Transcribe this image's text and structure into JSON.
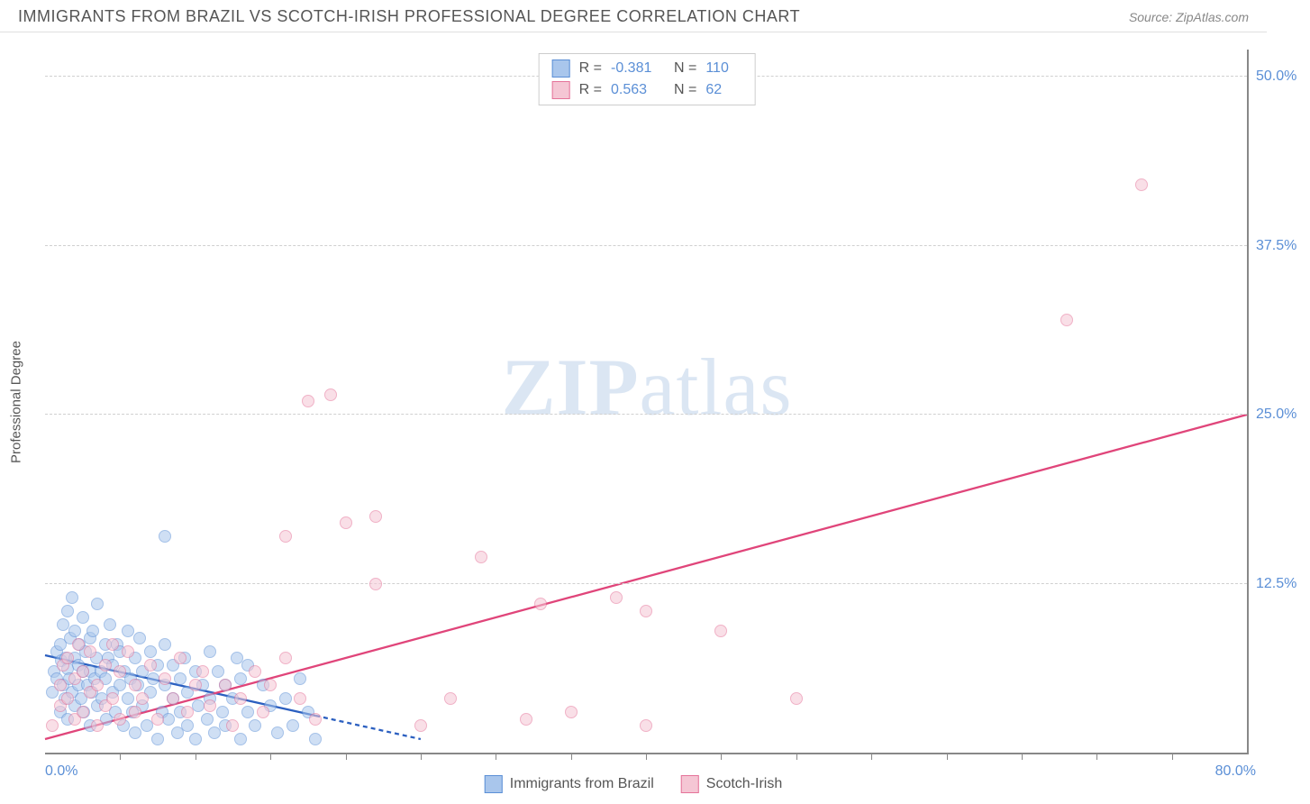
{
  "header": {
    "title": "IMMIGRANTS FROM BRAZIL VS SCOTCH-IRISH PROFESSIONAL DEGREE CORRELATION CHART",
    "source": "Source: ZipAtlas.com"
  },
  "watermark": {
    "zip": "ZIP",
    "atlas": "atlas"
  },
  "chart": {
    "type": "scatter",
    "y_axis_title": "Professional Degree",
    "xlim": [
      0,
      80
    ],
    "ylim": [
      0,
      52
    ],
    "x_origin_label": "0.0%",
    "x_max_label": "80.0%",
    "y_ticks": [
      {
        "v": 12.5,
        "label": "12.5%"
      },
      {
        "v": 25.0,
        "label": "25.0%"
      },
      {
        "v": 37.5,
        "label": "37.5%"
      },
      {
        "v": 50.0,
        "label": "50.0%"
      }
    ],
    "x_tick_positions": [
      5,
      10,
      15,
      20,
      25,
      30,
      35,
      40,
      45,
      50,
      55,
      60,
      65,
      70,
      75
    ],
    "grid_color": "#d0d0d0",
    "axis_color": "#888888",
    "background_color": "#ffffff",
    "label_color": "#5b8fd6",
    "point_radius": 7,
    "point_opacity": 0.55,
    "series": [
      {
        "name": "Immigrants from Brazil",
        "color_fill": "#a9c6ec",
        "color_stroke": "#5b8fd6",
        "r_label": "R =",
        "r_value": "-0.381",
        "n_label": "N =",
        "n_value": "110",
        "trend": {
          "x1": 0,
          "y1": 7.2,
          "x2": 25,
          "y2": 1.0,
          "dash_from_x": 18,
          "color": "#2b5fc0",
          "width": 2.3
        },
        "points": [
          [
            0.5,
            4.5
          ],
          [
            0.6,
            6.0
          ],
          [
            0.8,
            5.5
          ],
          [
            0.8,
            7.5
          ],
          [
            1.0,
            3.0
          ],
          [
            1.0,
            8.0
          ],
          [
            1.1,
            6.8
          ],
          [
            1.2,
            5.0
          ],
          [
            1.2,
            9.5
          ],
          [
            1.3,
            4.0
          ],
          [
            1.4,
            7.0
          ],
          [
            1.5,
            2.5
          ],
          [
            1.5,
            6.2
          ],
          [
            1.5,
            10.5
          ],
          [
            1.6,
            5.5
          ],
          [
            1.7,
            8.5
          ],
          [
            1.8,
            4.5
          ],
          [
            1.8,
            11.5
          ],
          [
            2.0,
            3.5
          ],
          [
            2.0,
            7.0
          ],
          [
            2.0,
            9.0
          ],
          [
            2.2,
            5.0
          ],
          [
            2.2,
            6.5
          ],
          [
            2.3,
            8.0
          ],
          [
            2.4,
            4.0
          ],
          [
            2.5,
            10.0
          ],
          [
            2.5,
            6.0
          ],
          [
            2.6,
            3.0
          ],
          [
            2.7,
            7.5
          ],
          [
            2.8,
            5.0
          ],
          [
            3.0,
            2.0
          ],
          [
            3.0,
            8.5
          ],
          [
            3.0,
            6.0
          ],
          [
            3.1,
            4.5
          ],
          [
            3.2,
            9.0
          ],
          [
            3.3,
            5.5
          ],
          [
            3.4,
            7.0
          ],
          [
            3.5,
            3.5
          ],
          [
            3.5,
            11.0
          ],
          [
            3.7,
            6.0
          ],
          [
            3.8,
            4.0
          ],
          [
            4.0,
            8.0
          ],
          [
            4.0,
            5.5
          ],
          [
            4.1,
            2.5
          ],
          [
            4.2,
            7.0
          ],
          [
            4.3,
            9.5
          ],
          [
            4.5,
            4.5
          ],
          [
            4.5,
            6.5
          ],
          [
            4.7,
            3.0
          ],
          [
            4.8,
            8.0
          ],
          [
            5.0,
            5.0
          ],
          [
            5.0,
            7.5
          ],
          [
            5.2,
            2.0
          ],
          [
            5.3,
            6.0
          ],
          [
            5.5,
            4.0
          ],
          [
            5.5,
            9.0
          ],
          [
            5.7,
            5.5
          ],
          [
            5.8,
            3.0
          ],
          [
            6.0,
            7.0
          ],
          [
            6.0,
            1.5
          ],
          [
            6.2,
            5.0
          ],
          [
            6.3,
            8.5
          ],
          [
            6.5,
            3.5
          ],
          [
            6.5,
            6.0
          ],
          [
            6.8,
            2.0
          ],
          [
            7.0,
            4.5
          ],
          [
            7.0,
            7.5
          ],
          [
            7.2,
            5.5
          ],
          [
            7.5,
            1.0
          ],
          [
            7.5,
            6.5
          ],
          [
            7.8,
            3.0
          ],
          [
            8.0,
            5.0
          ],
          [
            8.0,
            8.0
          ],
          [
            8.2,
            2.5
          ],
          [
            8.5,
            4.0
          ],
          [
            8.5,
            6.5
          ],
          [
            8.8,
            1.5
          ],
          [
            9.0,
            5.5
          ],
          [
            9.0,
            3.0
          ],
          [
            9.3,
            7.0
          ],
          [
            9.5,
            2.0
          ],
          [
            9.5,
            4.5
          ],
          [
            10.0,
            6.0
          ],
          [
            10.0,
            1.0
          ],
          [
            10.2,
            3.5
          ],
          [
            10.5,
            5.0
          ],
          [
            10.8,
            2.5
          ],
          [
            11.0,
            7.5
          ],
          [
            11.0,
            4.0
          ],
          [
            11.3,
            1.5
          ],
          [
            11.5,
            6.0
          ],
          [
            11.8,
            3.0
          ],
          [
            12.0,
            5.0
          ],
          [
            12.0,
            2.0
          ],
          [
            12.5,
            4.0
          ],
          [
            12.8,
            7.0
          ],
          [
            13.0,
            1.0
          ],
          [
            13.0,
            5.5
          ],
          [
            13.5,
            3.0
          ],
          [
            13.5,
            6.5
          ],
          [
            14.0,
            2.0
          ],
          [
            14.5,
            5.0
          ],
          [
            15.0,
            3.5
          ],
          [
            15.5,
            1.5
          ],
          [
            16.0,
            4.0
          ],
          [
            16.5,
            2.0
          ],
          [
            17.0,
            5.5
          ],
          [
            17.5,
            3.0
          ],
          [
            18.0,
            1.0
          ],
          [
            8.0,
            16.0
          ]
        ]
      },
      {
        "name": "Scotch-Irish",
        "color_fill": "#f5c6d4",
        "color_stroke": "#e57399",
        "r_label": "R =",
        "r_value": "0.563",
        "n_label": "N =",
        "n_value": "62",
        "trend": {
          "x1": 0,
          "y1": 1.0,
          "x2": 80,
          "y2": 25.0,
          "color": "#e0457a",
          "width": 2.3
        },
        "points": [
          [
            0.5,
            2.0
          ],
          [
            1.0,
            5.0
          ],
          [
            1.0,
            3.5
          ],
          [
            1.2,
            6.5
          ],
          [
            1.5,
            4.0
          ],
          [
            1.5,
            7.0
          ],
          [
            2.0,
            2.5
          ],
          [
            2.0,
            5.5
          ],
          [
            2.2,
            8.0
          ],
          [
            2.5,
            3.0
          ],
          [
            2.5,
            6.0
          ],
          [
            3.0,
            4.5
          ],
          [
            3.0,
            7.5
          ],
          [
            3.5,
            2.0
          ],
          [
            3.5,
            5.0
          ],
          [
            4.0,
            6.5
          ],
          [
            4.0,
            3.5
          ],
          [
            4.5,
            8.0
          ],
          [
            4.5,
            4.0
          ],
          [
            5.0,
            2.5
          ],
          [
            5.0,
            6.0
          ],
          [
            5.5,
            7.5
          ],
          [
            6.0,
            3.0
          ],
          [
            6.0,
            5.0
          ],
          [
            6.5,
            4.0
          ],
          [
            7.0,
            6.5
          ],
          [
            7.5,
            2.5
          ],
          [
            8.0,
            5.5
          ],
          [
            8.5,
            4.0
          ],
          [
            9.0,
            7.0
          ],
          [
            9.5,
            3.0
          ],
          [
            10.0,
            5.0
          ],
          [
            10.5,
            6.0
          ],
          [
            11.0,
            3.5
          ],
          [
            12.0,
            5.0
          ],
          [
            12.5,
            2.0
          ],
          [
            13.0,
            4.0
          ],
          [
            14.0,
            6.0
          ],
          [
            14.5,
            3.0
          ],
          [
            15.0,
            5.0
          ],
          [
            16.0,
            7.0
          ],
          [
            16.0,
            16.0
          ],
          [
            17.0,
            4.0
          ],
          [
            18.0,
            2.5
          ],
          [
            17.5,
            26.0
          ],
          [
            19.0,
            26.5
          ],
          [
            20.0,
            17.0
          ],
          [
            22.0,
            17.5
          ],
          [
            22.0,
            12.5
          ],
          [
            25.0,
            2.0
          ],
          [
            27.0,
            4.0
          ],
          [
            29.0,
            14.5
          ],
          [
            32.0,
            2.5
          ],
          [
            33.0,
            11.0
          ],
          [
            35.0,
            3.0
          ],
          [
            38.0,
            11.5
          ],
          [
            40.0,
            2.0
          ],
          [
            40.0,
            10.5
          ],
          [
            45.0,
            9.0
          ],
          [
            68.0,
            32.0
          ],
          [
            73.0,
            42.0
          ],
          [
            50.0,
            4.0
          ]
        ]
      }
    ]
  },
  "bottom_legend": [
    {
      "label": "Immigrants from Brazil",
      "fill": "#a9c6ec",
      "stroke": "#5b8fd6"
    },
    {
      "label": "Scotch-Irish",
      "fill": "#f5c6d4",
      "stroke": "#e57399"
    }
  ]
}
